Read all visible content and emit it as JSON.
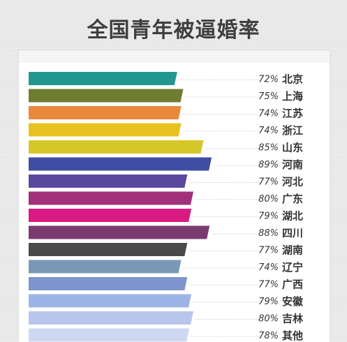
{
  "chart_data": {
    "type": "bar",
    "orientation": "horizontal",
    "title": "全国青年被逼婚率",
    "xlabel": "",
    "ylabel": "",
    "unit": "%",
    "grid": false,
    "legend": "none",
    "categories": [
      "北京",
      "上海",
      "江苏",
      "浙江",
      "山东",
      "河南",
      "河北",
      "广东",
      "湖北",
      "四川",
      "湖南",
      "辽宁",
      "广西",
      "安徽",
      "吉林",
      "其他"
    ],
    "values": [
      72,
      75,
      74,
      74,
      85,
      89,
      77,
      80,
      79,
      88,
      77,
      74,
      77,
      79,
      80,
      78
    ],
    "value_labels": [
      "72%",
      "75%",
      "74%",
      "74%",
      "85%",
      "89%",
      "77%",
      "80%",
      "79%",
      "88%",
      "77%",
      "74%",
      "77%",
      "79%",
      "80%",
      "78%"
    ],
    "colors": [
      "#21978f",
      "#6f7d30",
      "#e8893b",
      "#e9c11f",
      "#d6c729",
      "#3f4ea2",
      "#5a48a0",
      "#a2307a",
      "#d81a82",
      "#7a3a70",
      "#4a4a4a",
      "#7a98b6",
      "#7f93cf",
      "#9fb4e6",
      "#b9c6ec",
      "#cfd8f2"
    ]
  }
}
